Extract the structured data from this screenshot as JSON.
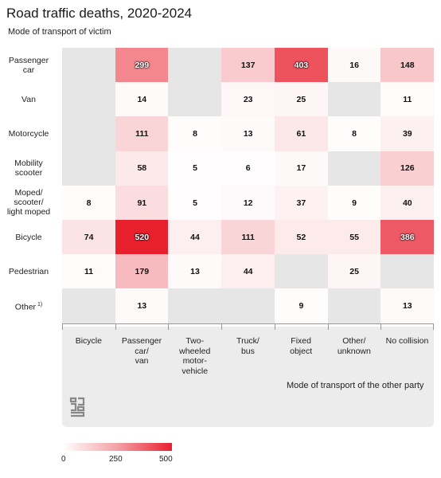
{
  "title": "Road traffic deaths, 2020-2024",
  "subtitle": "Mode of transport of victim",
  "x_axis_title": "Mode of transport of the other party",
  "colors": {
    "low": "#ffffff",
    "mid": "#f4a0a6",
    "high": "#e8202e",
    "empty": "#e6e6e6",
    "panel": "#ececec"
  },
  "legend": {
    "min_label": "0",
    "mid_label": "250",
    "max_label": "500"
  },
  "logo_icon": "cbs-logo-icon",
  "chart_data": {
    "type": "heatmap",
    "title": "Road traffic deaths, 2020-2024",
    "ylabel": "Mode of transport of victim",
    "xlabel": "Mode of transport of the other party",
    "rows": [
      "Passenger\ncar",
      "Van",
      "Motorcycle",
      "Mobility\nscooter",
      "Moped/\nscooter/\nlight moped",
      "Bicycle",
      "Pedestrian",
      "Other"
    ],
    "row_footnote": [
      "",
      "",
      "",
      "",
      "",
      "",
      "",
      "1)"
    ],
    "columns": [
      "Bicycle",
      "Passenger\ncar/\nvan",
      "Two-\nwheeled\nmotor-\nvehicle",
      "Truck/\nbus",
      "Fixed\nobject",
      "Other/\nunknown",
      "No collision"
    ],
    "values": [
      [
        null,
        299,
        null,
        137,
        403,
        16,
        148
      ],
      [
        null,
        14,
        null,
        23,
        25,
        null,
        11
      ],
      [
        null,
        111,
        8,
        13,
        61,
        8,
        39
      ],
      [
        null,
        58,
        5,
        6,
        17,
        null,
        126
      ],
      [
        8,
        91,
        5,
        12,
        37,
        9,
        40
      ],
      [
        74,
        520,
        44,
        111,
        52,
        55,
        386
      ],
      [
        11,
        179,
        13,
        44,
        null,
        25,
        null
      ],
      [
        null,
        13,
        null,
        null,
        9,
        null,
        13
      ]
    ],
    "color_scale": {
      "min": 0,
      "max": 500
    }
  }
}
